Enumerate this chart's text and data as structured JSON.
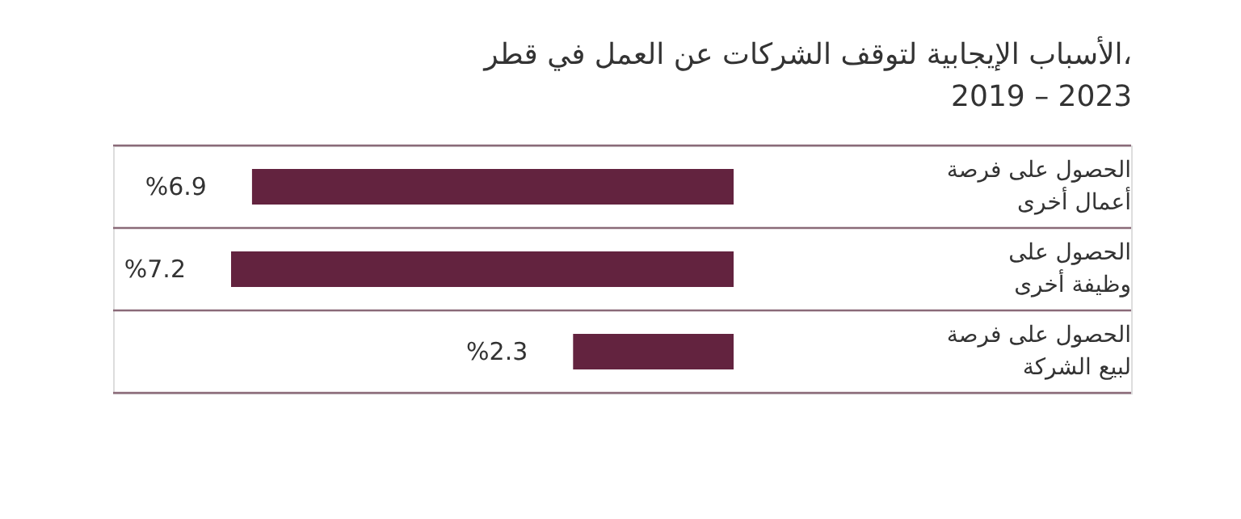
{
  "chart_data": {
    "type": "bar",
    "orientation": "horizontal",
    "title": [
      "الأسباب الإيجابية لتوقف الشركات عن العمل في قطر،",
      "2019 – 2023"
    ],
    "categories": [
      "الحصول على فرصة أعمال أخرى",
      "الحصول على وظيفة أخرى",
      "الحصول على فرصة لبيع الشركة"
    ],
    "values": [
      6.9,
      7.2,
      2.3
    ],
    "value_labels": [
      "%6.9",
      "%7.2",
      "%2.3"
    ],
    "color": "#63233f",
    "grid": "y"
  }
}
